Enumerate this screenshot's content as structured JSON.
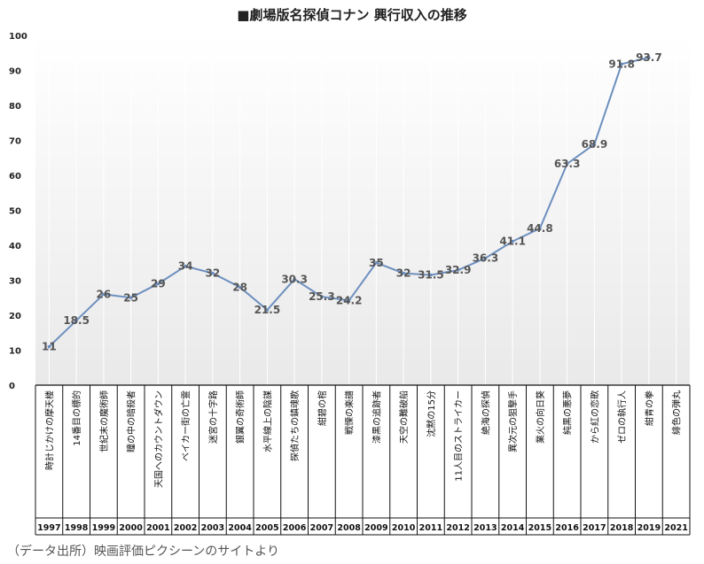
{
  "chart_data": {
    "type": "line",
    "title": "■劇場版名探偵コナン 興行収入の推移",
    "xlabel": "",
    "ylabel": "",
    "ylim": [
      0,
      100
    ],
    "yticks": [
      0,
      10,
      20,
      30,
      40,
      50,
      60,
      70,
      80,
      90,
      100
    ],
    "grid": false,
    "series_color": "#6d8fbf",
    "years": [
      "1997",
      "1998",
      "1999",
      "2000",
      "2001",
      "2002",
      "2003",
      "2004",
      "2005",
      "2006",
      "2007",
      "2008",
      "2009",
      "2010",
      "2011",
      "2012",
      "2013",
      "2014",
      "2015",
      "2016",
      "2017",
      "2018",
      "2019",
      "2021"
    ],
    "categories": [
      "時計じかけの摩天楼",
      "14番目の標的",
      "世紀末の魔術師",
      "瞳の中の暗殺者",
      "天国へのカウントダウン",
      "ベイカー街の亡霊",
      "迷宮の十字路",
      "銀翼の奇術師",
      "水平線上の陰謀",
      "探偵たちの鎮魂歌",
      "紺碧の棺",
      "戦慄の楽譜",
      "漆黒の追跡者",
      "天空の難破船",
      "沈黙の15分",
      "11人目のストライカー",
      "絶海の探偵",
      "異次元の狙撃手",
      "業火の向日葵",
      "純黒の悪夢",
      "から紅の恋歌",
      "ゼロの執行人",
      "紺青の拳",
      "緋色の弾丸"
    ],
    "values": [
      11,
      18.5,
      26,
      25,
      29,
      34,
      32,
      28,
      21.5,
      30.3,
      25.3,
      24.2,
      35,
      32,
      31.5,
      32.9,
      36.3,
      41.1,
      44.8,
      63.3,
      68.9,
      91.8,
      93.7,
      null
    ]
  },
  "footnote": "（データ出所）映画評価ピクシーンのサイトより"
}
